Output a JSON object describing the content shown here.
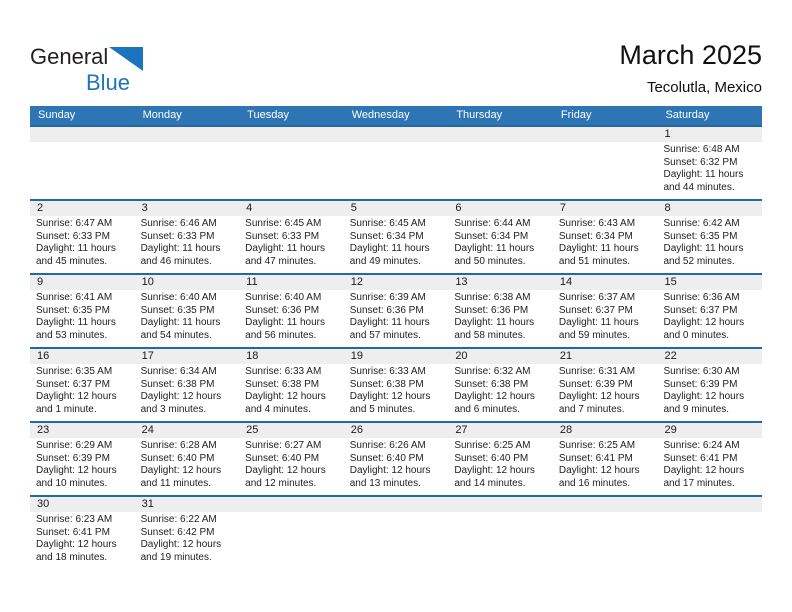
{
  "logo": {
    "part1": "General",
    "part2": "Blue"
  },
  "header": {
    "title": "March 2025",
    "subtitle": "Tecolutla, Mexico"
  },
  "weekday_headers": [
    "Sunday",
    "Monday",
    "Tuesday",
    "Wednesday",
    "Thursday",
    "Friday",
    "Saturday"
  ],
  "labels": {
    "sunrise": "Sunrise:",
    "sunset": "Sunset:",
    "daylight": "Daylight:"
  },
  "colors": {
    "header_bar": "#2e75b6",
    "separator": "#2368a2",
    "day_band": "#eeeeee",
    "logo_blue": "#1c75bc"
  },
  "calendar": {
    "weeks": [
      [
        null,
        null,
        null,
        null,
        null,
        null,
        {
          "day": "1",
          "sunrise": "6:48 AM",
          "sunset": "6:32 PM",
          "daylight": "11 hours and 44 minutes."
        }
      ],
      [
        {
          "day": "2",
          "sunrise": "6:47 AM",
          "sunset": "6:33 PM",
          "daylight": "11 hours and 45 minutes."
        },
        {
          "day": "3",
          "sunrise": "6:46 AM",
          "sunset": "6:33 PM",
          "daylight": "11 hours and 46 minutes."
        },
        {
          "day": "4",
          "sunrise": "6:45 AM",
          "sunset": "6:33 PM",
          "daylight": "11 hours and 47 minutes."
        },
        {
          "day": "5",
          "sunrise": "6:45 AM",
          "sunset": "6:34 PM",
          "daylight": "11 hours and 49 minutes."
        },
        {
          "day": "6",
          "sunrise": "6:44 AM",
          "sunset": "6:34 PM",
          "daylight": "11 hours and 50 minutes."
        },
        {
          "day": "7",
          "sunrise": "6:43 AM",
          "sunset": "6:34 PM",
          "daylight": "11 hours and 51 minutes."
        },
        {
          "day": "8",
          "sunrise": "6:42 AM",
          "sunset": "6:35 PM",
          "daylight": "11 hours and 52 minutes."
        }
      ],
      [
        {
          "day": "9",
          "sunrise": "6:41 AM",
          "sunset": "6:35 PM",
          "daylight": "11 hours and 53 minutes."
        },
        {
          "day": "10",
          "sunrise": "6:40 AM",
          "sunset": "6:35 PM",
          "daylight": "11 hours and 54 minutes."
        },
        {
          "day": "11",
          "sunrise": "6:40 AM",
          "sunset": "6:36 PM",
          "daylight": "11 hours and 56 minutes."
        },
        {
          "day": "12",
          "sunrise": "6:39 AM",
          "sunset": "6:36 PM",
          "daylight": "11 hours and 57 minutes."
        },
        {
          "day": "13",
          "sunrise": "6:38 AM",
          "sunset": "6:36 PM",
          "daylight": "11 hours and 58 minutes."
        },
        {
          "day": "14",
          "sunrise": "6:37 AM",
          "sunset": "6:37 PM",
          "daylight": "11 hours and 59 minutes."
        },
        {
          "day": "15",
          "sunrise": "6:36 AM",
          "sunset": "6:37 PM",
          "daylight": "12 hours and 0 minutes."
        }
      ],
      [
        {
          "day": "16",
          "sunrise": "6:35 AM",
          "sunset": "6:37 PM",
          "daylight": "12 hours and 1 minute."
        },
        {
          "day": "17",
          "sunrise": "6:34 AM",
          "sunset": "6:38 PM",
          "daylight": "12 hours and 3 minutes."
        },
        {
          "day": "18",
          "sunrise": "6:33 AM",
          "sunset": "6:38 PM",
          "daylight": "12 hours and 4 minutes."
        },
        {
          "day": "19",
          "sunrise": "6:33 AM",
          "sunset": "6:38 PM",
          "daylight": "12 hours and 5 minutes."
        },
        {
          "day": "20",
          "sunrise": "6:32 AM",
          "sunset": "6:38 PM",
          "daylight": "12 hours and 6 minutes."
        },
        {
          "day": "21",
          "sunrise": "6:31 AM",
          "sunset": "6:39 PM",
          "daylight": "12 hours and 7 minutes."
        },
        {
          "day": "22",
          "sunrise": "6:30 AM",
          "sunset": "6:39 PM",
          "daylight": "12 hours and 9 minutes."
        }
      ],
      [
        {
          "day": "23",
          "sunrise": "6:29 AM",
          "sunset": "6:39 PM",
          "daylight": "12 hours and 10 minutes."
        },
        {
          "day": "24",
          "sunrise": "6:28 AM",
          "sunset": "6:40 PM",
          "daylight": "12 hours and 11 minutes."
        },
        {
          "day": "25",
          "sunrise": "6:27 AM",
          "sunset": "6:40 PM",
          "daylight": "12 hours and 12 minutes."
        },
        {
          "day": "26",
          "sunrise": "6:26 AM",
          "sunset": "6:40 PM",
          "daylight": "12 hours and 13 minutes."
        },
        {
          "day": "27",
          "sunrise": "6:25 AM",
          "sunset": "6:40 PM",
          "daylight": "12 hours and 14 minutes."
        },
        {
          "day": "28",
          "sunrise": "6:25 AM",
          "sunset": "6:41 PM",
          "daylight": "12 hours and 16 minutes."
        },
        {
          "day": "29",
          "sunrise": "6:24 AM",
          "sunset": "6:41 PM",
          "daylight": "12 hours and 17 minutes."
        }
      ],
      [
        {
          "day": "30",
          "sunrise": "6:23 AM",
          "sunset": "6:41 PM",
          "daylight": "12 hours and 18 minutes."
        },
        {
          "day": "31",
          "sunrise": "6:22 AM",
          "sunset": "6:42 PM",
          "daylight": "12 hours and 19 minutes."
        },
        null,
        null,
        null,
        null,
        null
      ]
    ]
  }
}
